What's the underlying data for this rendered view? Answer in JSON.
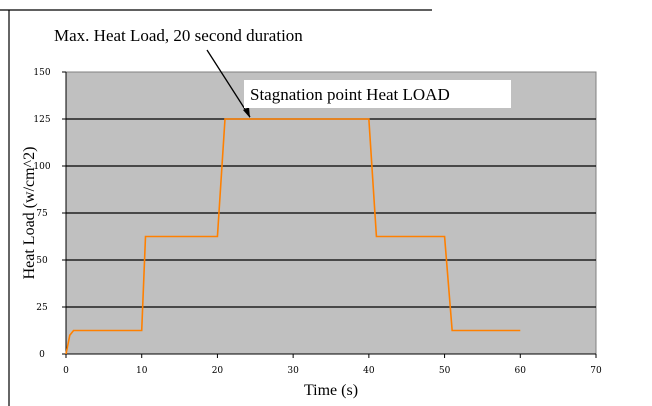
{
  "chart_data": {
    "type": "line",
    "title": "",
    "xlabel": "Time (s)",
    "ylabel": "Heat Load (w/cm^2)",
    "xlim": [
      0,
      70
    ],
    "ylim": [
      0,
      150
    ],
    "x_ticks": [
      0,
      10,
      20,
      30,
      40,
      50,
      60,
      70
    ],
    "y_ticks": [
      0,
      25,
      50,
      75,
      100,
      125,
      150
    ],
    "x_tick_labels": [
      "0",
      "10",
      "20",
      "30",
      "40",
      "50",
      "60",
      "70"
    ],
    "y_tick_labels": [
      "0",
      "25",
      "50",
      "75",
      "100",
      "125",
      "150"
    ],
    "grid": "horizontal",
    "legend": "none",
    "colors": {
      "plot_bg": "#c0c0c0",
      "line": "#ff8000",
      "grid": "#000000"
    },
    "series": [
      {
        "x": [
          0,
          0.5,
          1,
          10,
          10.5,
          20,
          21,
          40,
          41,
          50,
          51,
          60
        ],
        "y": [
          0,
          10,
          12.5,
          12.5,
          62.5,
          62.5,
          125,
          125,
          62.5,
          62.5,
          12.5,
          12.5
        ]
      }
    ],
    "annotations": [
      {
        "text": "Max. Heat Load, 20 second duration",
        "target_x": 24,
        "target_y": 125
      },
      {
        "text": "Stagnation point Heat LOAD"
      }
    ]
  }
}
